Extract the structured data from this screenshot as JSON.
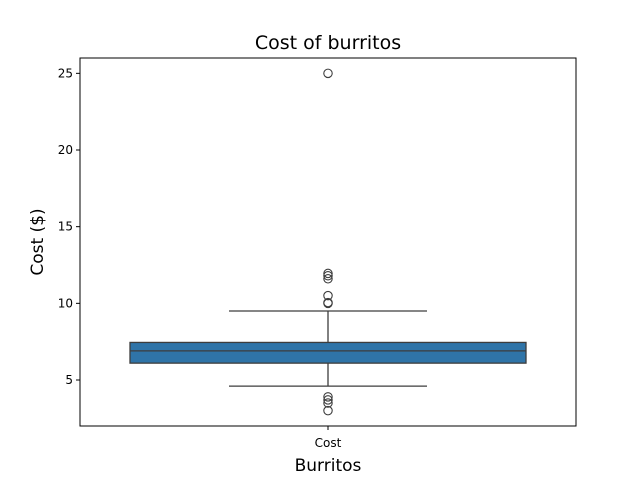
{
  "chart_data": {
    "type": "box",
    "title": "Cost of burritos",
    "xlabel": "Burritos",
    "ylabel": "Cost ($)",
    "categories": [
      "Cost"
    ],
    "ylim": [
      2.0,
      26.0
    ],
    "yticks": [
      5,
      10,
      15,
      20,
      25
    ],
    "grid": false,
    "box": {
      "category": "Cost",
      "whisker_low": 4.6,
      "q1": 6.1,
      "median": 6.9,
      "q3": 7.45,
      "whisker_high": 9.5,
      "outliers": [
        3.0,
        3.5,
        3.7,
        3.9,
        10.0,
        10.05,
        10.5,
        11.6,
        11.8,
        11.95,
        25.0
      ]
    },
    "colors": {
      "box_fill": "#2f74a8",
      "line": "#3d3d3d",
      "axis": "#000000"
    }
  }
}
